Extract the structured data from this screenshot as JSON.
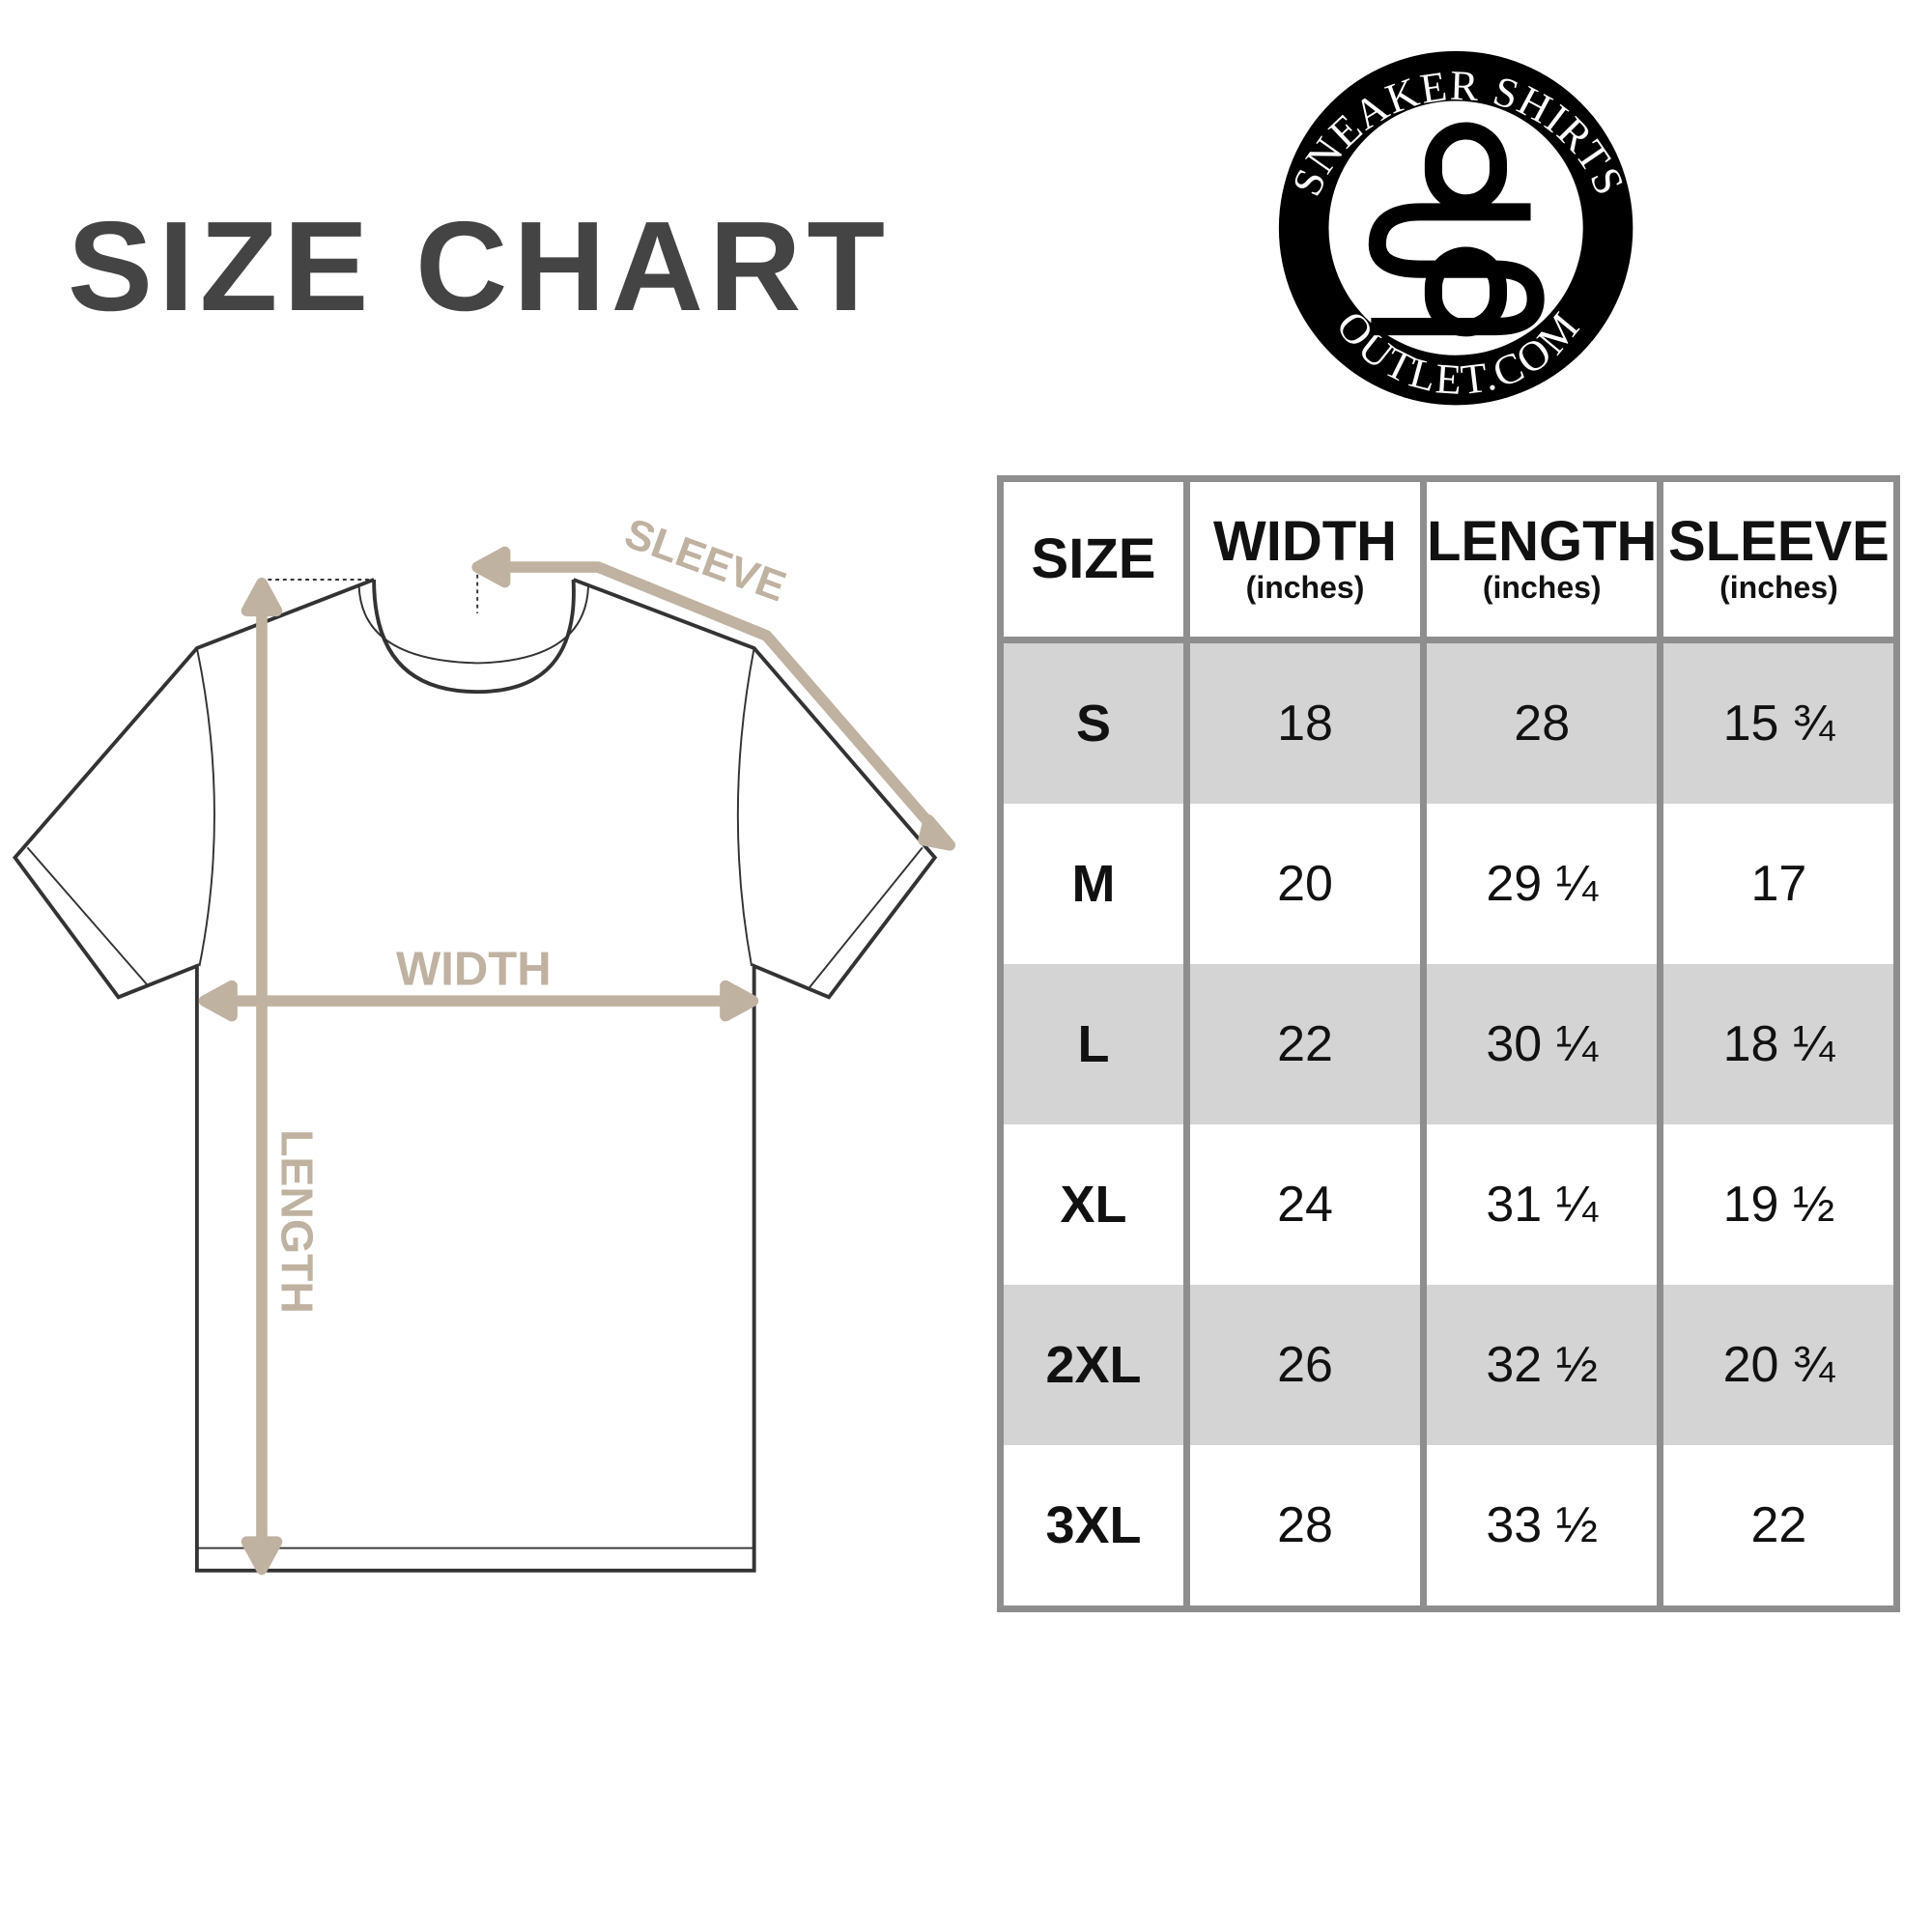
{
  "title": "SIZE CHART",
  "logo": {
    "top_text": "SNEAKER SHIRTS",
    "bottom_text": "OUTLET.COM",
    "monogram": "SO"
  },
  "diagram": {
    "sleeve_label": "SLEEVE",
    "width_label": "WIDTH",
    "length_label": "LENGTH",
    "accent_color": "#bfb2a0"
  },
  "table": {
    "headers": [
      {
        "main": "SIZE",
        "sub": ""
      },
      {
        "main": "WIDTH",
        "sub": "(inches)"
      },
      {
        "main": "LENGTH",
        "sub": "(inches)"
      },
      {
        "main": "SLEEVE",
        "sub": "(inches)"
      }
    ],
    "rows": [
      [
        "S",
        "18",
        "28",
        "15 ¾"
      ],
      [
        "M",
        "20",
        "29 ¼",
        "17"
      ],
      [
        "L",
        "22",
        "30 ¼",
        "18 ¼"
      ],
      [
        "XL",
        "24",
        "31 ¼",
        "19 ½"
      ],
      [
        "2XL",
        "26",
        "32 ½",
        "20 ¾"
      ],
      [
        "3XL",
        "28",
        "33 ½",
        "22"
      ]
    ],
    "shade_color": "#d4d4d4",
    "border_color": "#8e8e8e"
  }
}
